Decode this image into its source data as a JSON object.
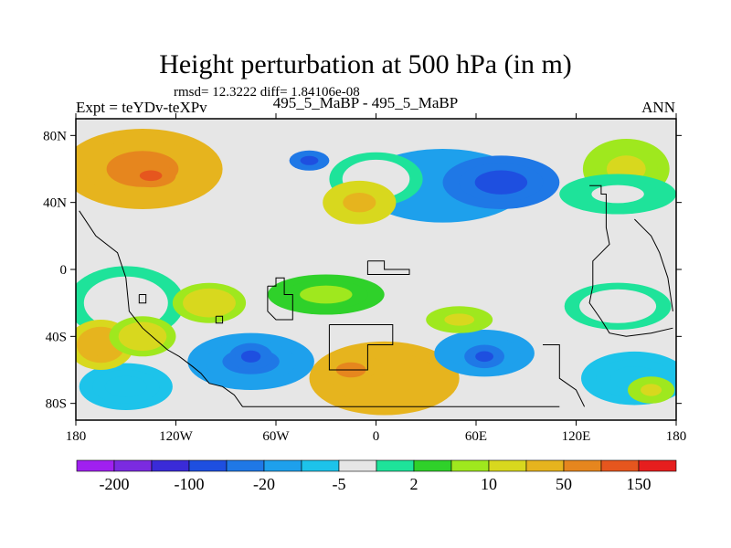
{
  "chart_data": {
    "type": "heatmap",
    "title": "Height perturbation at 500 hPa (in m)",
    "stats_text": "rmsd= 12.3222  diff= 1.84106e-08",
    "left_label": "Expt = teYDv-teXPv",
    "center_label": "495_5_MaBP - 495_5_MaBP",
    "right_label": "ANN",
    "x_ticks": [
      "180",
      "120W",
      "60W",
      "0",
      "60E",
      "120E",
      "180"
    ],
    "y_ticks": [
      "80N",
      "40N",
      "0",
      "40S",
      "80S"
    ],
    "xlim": [
      -180,
      180
    ],
    "ylim": [
      -90,
      90
    ],
    "colorbar": {
      "colors": [
        "#a020f0",
        "#7b2be0",
        "#3a2bd8",
        "#1e4fe0",
        "#1f78e6",
        "#1ea0ec",
        "#1dc3ea",
        "#e6e6e6",
        "#1ee39a",
        "#2fd12a",
        "#9fe81e",
        "#d8d81e",
        "#e6b41e",
        "#e6861e",
        "#e6561e",
        "#e61e1e"
      ],
      "labels": [
        "-200",
        "-100",
        "-20",
        "-5",
        "2",
        "10",
        "50",
        "150"
      ]
    },
    "features": [
      {
        "lon": -140,
        "lat": 60,
        "rx": 48,
        "ry": 24,
        "value": 55
      },
      {
        "lon": -135,
        "lat": 56,
        "rx": 15,
        "ry": 7,
        "value": 120
      },
      {
        "lon": 40,
        "lat": 50,
        "rx": 50,
        "ry": 22,
        "value": -40
      },
      {
        "lon": 75,
        "lat": 52,
        "rx": 35,
        "ry": 16,
        "value": -120
      },
      {
        "lon": -40,
        "lat": 65,
        "rx": 12,
        "ry": 6,
        "value": -110
      },
      {
        "lon": 0,
        "lat": 54,
        "rx": 28,
        "ry": 16,
        "value": -8
      },
      {
        "lon": -10,
        "lat": 40,
        "rx": 22,
        "ry": 13,
        "value": 20
      },
      {
        "lon": 150,
        "lat": 60,
        "rx": 26,
        "ry": 18,
        "value": 12
      },
      {
        "lon": 145,
        "lat": 45,
        "rx": 35,
        "ry": 12,
        "value": -6
      },
      {
        "lon": -150,
        "lat": -20,
        "rx": 35,
        "ry": 22,
        "value": -8
      },
      {
        "lon": -165,
        "lat": -45,
        "rx": 20,
        "ry": 15,
        "value": 30
      },
      {
        "lon": -140,
        "lat": -40,
        "rx": 20,
        "ry": 12,
        "value": 14
      },
      {
        "lon": -75,
        "lat": -55,
        "rx": 38,
        "ry": 17,
        "value": -60
      },
      {
        "lon": -75,
        "lat": -52,
        "rx": 13,
        "ry": 8,
        "value": -110
      },
      {
        "lon": -150,
        "lat": -70,
        "rx": 28,
        "ry": 14,
        "value": -20
      },
      {
        "lon": -100,
        "lat": -20,
        "rx": 22,
        "ry": 12,
        "value": 14
      },
      {
        "lon": 5,
        "lat": -65,
        "rx": 45,
        "ry": 22,
        "value": 40
      },
      {
        "lon": -15,
        "lat": -60,
        "rx": 20,
        "ry": 10,
        "value": 55
      },
      {
        "lon": -30,
        "lat": -15,
        "rx": 35,
        "ry": 12,
        "value": 5
      },
      {
        "lon": 50,
        "lat": -30,
        "rx": 20,
        "ry": 8,
        "value": 12
      },
      {
        "lon": 65,
        "lat": -50,
        "rx": 30,
        "ry": 14,
        "value": -50
      },
      {
        "lon": 65,
        "lat": -52,
        "rx": 12,
        "ry": 7,
        "value": -110
      },
      {
        "lon": 145,
        "lat": -22,
        "rx": 32,
        "ry": 14,
        "value": -8
      },
      {
        "lon": 155,
        "lat": -65,
        "rx": 32,
        "ry": 16,
        "value": -20
      },
      {
        "lon": 165,
        "lat": -72,
        "rx": 14,
        "ry": 8,
        "value": 12
      }
    ]
  }
}
